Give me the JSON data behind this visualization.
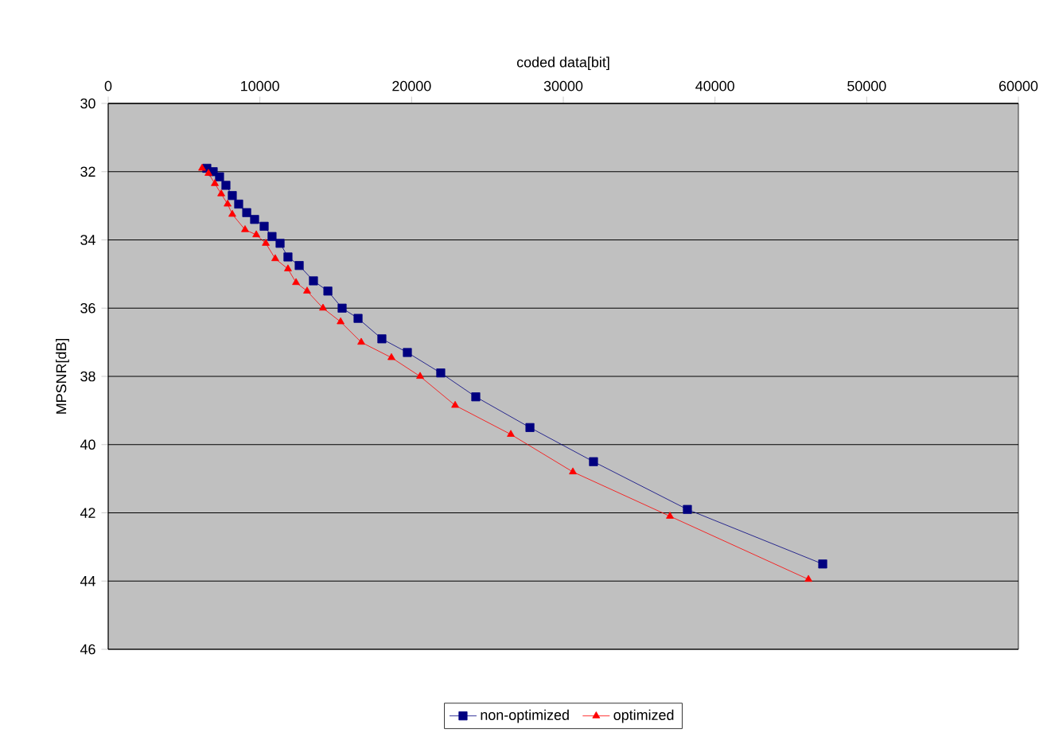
{
  "chart_data": {
    "type": "line",
    "xlabel": "coded data[bit]",
    "ylabel": "MPSNR[dB]",
    "xlim": [
      0,
      60000
    ],
    "xticks": [
      0,
      10000,
      20000,
      30000,
      40000,
      50000,
      60000
    ],
    "ylim": [
      46,
      30
    ],
    "yticks": [
      30,
      32,
      34,
      36,
      38,
      40,
      42,
      44,
      46
    ],
    "grid": "y",
    "legend": "bottom",
    "line_style": "solid",
    "series": [
      {
        "name": "non-optimized",
        "color": "#000080",
        "marker": "square",
        "x": [
          6500,
          6920,
          7340,
          7760,
          8180,
          8600,
          9130,
          9650,
          10280,
          10800,
          11330,
          11850,
          12590,
          13530,
          14480,
          15420,
          16470,
          18040,
          19720,
          21920,
          24230,
          27800,
          31990,
          38180,
          47100
        ],
        "values": [
          31.9,
          32.0,
          32.15,
          32.4,
          32.7,
          32.95,
          33.2,
          33.4,
          33.6,
          33.9,
          34.1,
          34.5,
          34.75,
          35.2,
          35.5,
          36.0,
          36.3,
          36.9,
          37.3,
          37.9,
          38.6,
          39.5,
          40.5,
          41.9,
          43.5
        ]
      },
      {
        "name": "optimized",
        "color": "#ff0000",
        "marker": "triangle",
        "x": [
          6190,
          6610,
          7030,
          7450,
          7870,
          8180,
          9020,
          9760,
          10390,
          11010,
          11850,
          12380,
          13110,
          14160,
          15320,
          16680,
          18670,
          20560,
          22870,
          26540,
          30630,
          37030,
          46160
        ],
        "values": [
          31.9,
          32.05,
          32.35,
          32.65,
          32.95,
          33.25,
          33.7,
          33.85,
          34.1,
          34.55,
          34.85,
          35.25,
          35.5,
          36.0,
          36.4,
          37.0,
          37.45,
          38.0,
          38.85,
          39.7,
          40.8,
          42.1,
          43.95
        ]
      }
    ]
  }
}
